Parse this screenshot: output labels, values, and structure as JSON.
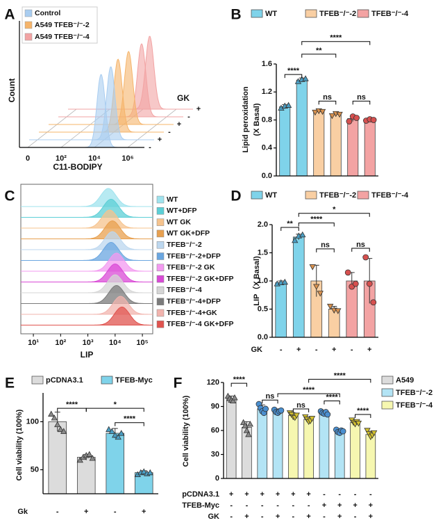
{
  "chart_data": [
    {
      "type": "waterfall",
      "panel": "A",
      "ylabel": "Count",
      "xlabel": "C11-BODIPY",
      "xlim": [
        -0.5,
        7
      ],
      "xticks": [
        0,
        {
          "value": 2,
          "label": "10²"
        },
        {
          "value": 4,
          "label": "10⁴"
        },
        {
          "value": 6,
          "label": "10⁶"
        }
      ],
      "zlabel": "GK",
      "zticks": [
        "+",
        "-",
        "+",
        "-",
        "+",
        "-"
      ],
      "series": [
        {
          "name": "Control",
          "color": "#a9cdf0",
          "peaks": [
            4.4,
            4.4
          ]
        },
        {
          "name": "A549 TFEB⁻/⁻-2",
          "color": "#f5b46a",
          "peaks": [
            4.3,
            4.25
          ]
        },
        {
          "name": "A549 TFEB⁻/⁻-4",
          "color": "#f2a3a3",
          "peaks": [
            4.4,
            4.5
          ]
        }
      ]
    },
    {
      "type": "bar",
      "panel": "B",
      "ylabel": "Lipid peroxidation",
      "ylabel2": "(X Basal)",
      "ylim": [
        0,
        1.6
      ],
      "yticks": [
        {
          "value": 0,
          "label": "0.0"
        },
        0.4,
        0.8,
        1.2,
        1.6
      ],
      "series": [
        {
          "name": "WT",
          "color": "#7fd3ea",
          "point_color": "#4a9ec4",
          "marker": "triangle-up",
          "values": [
            0.99,
            1.37,
            null,
            null,
            null,
            null
          ],
          "errors": [
            0.03,
            0.03,
            null,
            null,
            null,
            null
          ],
          "points": [
            [
              0.97,
              1.0,
              1.01
            ],
            [
              1.35,
              1.38,
              1.39
            ],
            null,
            null,
            null,
            null
          ]
        },
        {
          "name": "TFEB⁻/⁻-2",
          "color": "#f9cfa3",
          "point_color": "#d9914e",
          "marker": "triangle-down",
          "values": [
            null,
            null,
            0.92,
            0.88,
            null,
            null
          ],
          "errors": [
            null,
            null,
            0.02,
            0.03,
            null,
            null
          ],
          "points": [
            null,
            null,
            [
              0.91,
              0.93,
              0.92
            ],
            [
              0.86,
              0.89,
              0.88
            ],
            null,
            null
          ]
        },
        {
          "name": "TFEB⁻/⁻-4",
          "color": "#f3a3a3",
          "point_color": "#d6504f",
          "marker": "circle",
          "values": [
            null,
            null,
            null,
            null,
            0.82,
            0.8
          ],
          "errors": [
            null,
            null,
            null,
            null,
            0.04,
            0.02
          ],
          "points": [
            null,
            null,
            null,
            null,
            [
              0.78,
              0.85,
              0.83
            ],
            [
              0.79,
              0.81,
              0.8
            ]
          ]
        }
      ],
      "annotations": [
        "****",
        "**",
        "****",
        "ns",
        "ns"
      ]
    },
    {
      "type": "ridgeline",
      "panel": "C",
      "xlabel": "LIP",
      "xlim": [
        0.54,
        5.38
      ],
      "xticks": [
        {
          "value": 1,
          "label": "10¹"
        },
        {
          "value": 2,
          "label": "10²"
        },
        {
          "value": 3,
          "label": "10³"
        },
        {
          "value": 4,
          "label": "10⁴"
        },
        {
          "value": 5,
          "label": "10⁵"
        }
      ],
      "series": [
        {
          "name": "WT",
          "color": "#9fe3ee",
          "peak": 3.75
        },
        {
          "name": "WT+DFP",
          "color": "#5ccfd6",
          "peak": 3.85
        },
        {
          "name": "WT GK",
          "color": "#f6c38d",
          "peak": 3.8
        },
        {
          "name": "WT GK+DFP",
          "color": "#e8a04f",
          "peak": 3.9
        },
        {
          "name": "TFEB⁻/⁻-2",
          "color": "#bcd7ef",
          "peak": 3.9
        },
        {
          "name": "TFEB⁻/⁻-2+DFP",
          "color": "#6aa6e0",
          "peak": 3.85
        },
        {
          "name": "TFEB⁻/⁻-2 GK",
          "color": "#f39af0",
          "peak": 4.05
        },
        {
          "name": "TFEB⁻/⁻-2 GK+DFP",
          "color": "#d94ad6",
          "peak": 4.0
        },
        {
          "name": "TFEB⁻/⁻-4",
          "color": "#d5d5d5",
          "peak": 4.0
        },
        {
          "name": "TFEB⁻/⁻-4+DFP",
          "color": "#7b7b7b",
          "peak": 4.05
        },
        {
          "name": "TFEB⁻/⁻-4+GK",
          "color": "#f2b4ae",
          "peak": 4.2
        },
        {
          "name": "TFEB⁻/⁻-4 GK+DFP",
          "color": "#e0544f",
          "peak": 4.25
        }
      ]
    },
    {
      "type": "bar",
      "panel": "D",
      "ylabel": "LIP（X Basal)",
      "ylim": [
        0,
        2
      ],
      "yticks": [
        {
          "value": 0,
          "label": "0.0"
        },
        0.5,
        {
          "value": 1,
          "label": "1.0"
        },
        1.5,
        {
          "value": 2,
          "label": "2.0"
        }
      ],
      "series": [
        {
          "name": "WT",
          "color": "#7fd3ea",
          "point_color": "#4a9ec4",
          "marker": "triangle-up",
          "values": [
            0.97,
            1.78,
            null,
            null,
            null,
            null
          ],
          "errors": [
            0.03,
            0.05,
            null,
            null,
            null,
            null
          ],
          "points": [
            [
              0.95,
              0.97,
              0.98
            ],
            [
              1.72,
              1.8,
              1.82
            ],
            null,
            null,
            null,
            null
          ]
        },
        {
          "name": "TFEB⁻/⁻-2",
          "color": "#f9cfa3",
          "point_color": "#d9914e",
          "marker": "triangle-down",
          "values": [
            null,
            null,
            1.0,
            0.5,
            null,
            null
          ],
          "errors": [
            null,
            null,
            0.28,
            0.05,
            null,
            null
          ],
          "points": [
            null,
            null,
            [
              1.25,
              0.9,
              0.78
            ],
            [
              0.55,
              0.48,
              0.47
            ],
            null,
            null
          ]
        },
        {
          "name": "TFEB⁻/⁻-4",
          "color": "#f3a3a3",
          "point_color": "#d6504f",
          "marker": "circle",
          "values": [
            null,
            null,
            null,
            null,
            1.0,
            1.0
          ],
          "errors": [
            null,
            null,
            null,
            null,
            0.15,
            0.4
          ],
          "points": [
            null,
            null,
            null,
            null,
            [
              1.15,
              0.9,
              0.95
            ],
            [
              1.42,
              0.95,
              0.62
            ]
          ]
        }
      ],
      "rows": [
        {
          "label": "GK",
          "marks": [
            "-",
            "+",
            "-",
            "+",
            "-",
            "+"
          ]
        }
      ],
      "annotations": [
        "**",
        "****",
        "*",
        "ns",
        "ns"
      ]
    },
    {
      "type": "bar",
      "panel": "E",
      "ylabel": "Cell viability (100%)",
      "ylim": [
        25,
        130
      ],
      "yticks": [
        50,
        100
      ],
      "series": [
        {
          "name": "pCDNA3.1",
          "color": "#dcdcdc",
          "point_color": "#8a8a8a",
          "marker": "triangle-up",
          "values": [
            100,
            63,
            null,
            null
          ],
          "errors": [
            10,
            3,
            null,
            null
          ],
          "points": [
            [
              108,
              104,
              97,
              92,
              90
            ],
            [
              60,
              63,
              65,
              66,
              62
            ],
            null,
            null
          ]
        },
        {
          "name": "TFEB-Myc",
          "color": "#7fd3ea",
          "point_color": "#4a9ec4",
          "marker": "triangle-up",
          "values": [
            null,
            null,
            88,
            47
          ],
          "errors": [
            null,
            null,
            5,
            2
          ],
          "points": [
            null,
            null,
            [
              92,
              90,
              86,
              84,
              88
            ],
            [
              45,
              47,
              48,
              46,
              47
            ]
          ]
        }
      ],
      "rows": [
        {
          "label": "Gk",
          "marks": [
            "-",
            "+",
            "-",
            "+"
          ]
        }
      ],
      "annotations": [
        "****",
        "*",
        "****"
      ]
    },
    {
      "type": "bar",
      "panel": "F",
      "ylabel": "Cell viability (100%)",
      "ylim": [
        0,
        120
      ],
      "yticks": [
        0,
        30,
        60,
        90,
        120
      ],
      "series": [
        {
          "name": "A549",
          "color": "#dcdcdc",
          "point_color": "#8a8a8a",
          "marker": "triangle-up",
          "values": [
            100,
            64,
            null,
            null,
            null,
            null,
            null,
            null,
            null,
            null
          ],
          "errors": [
            3,
            7,
            null,
            null,
            null,
            null,
            null,
            null,
            null,
            null
          ],
          "points": [
            [
              103,
              100,
              98,
              97,
              101
            ],
            [
              70,
              66,
              60,
              55,
              68
            ],
            null,
            null,
            null,
            null,
            null,
            null,
            null,
            null
          ]
        },
        {
          "name": "TFEB⁻/⁻-2",
          "color": "#b3e4f5",
          "point_color": "#4a8fd0",
          "marker": "circle",
          "values": [
            null,
            null,
            87,
            84,
            null,
            null,
            82,
            59,
            null,
            null
          ],
          "errors": [
            null,
            null,
            5,
            3,
            null,
            null,
            2,
            2,
            null,
            null
          ],
          "points": [
            null,
            null,
            [
              93,
              88,
              84,
              82,
              87
            ],
            [
              86,
              83,
              82,
              84,
              85
            ],
            null,
            null,
            [
              84,
              82,
              81,
              83,
              80
            ],
            [
              61,
              58,
              57,
              60,
              59
            ],
            null,
            null
          ]
        },
        {
          "name": "TFEB⁻/⁻-4",
          "color": "#f6f7b0",
          "point_color": "#d4c230",
          "marker": "triangle-down",
          "values": [
            null,
            null,
            null,
            null,
            79,
            74,
            null,
            null,
            70,
            55
          ],
          "errors": [
            null,
            null,
            null,
            null,
            3,
            3,
            null,
            null,
            3,
            4
          ],
          "points": [
            null,
            null,
            null,
            null,
            [
              82,
              80,
              77,
              76,
              79
            ],
            [
              77,
              74,
              71,
              72,
              75
            ],
            null,
            null,
            [
              73,
              70,
              68,
              71,
              69
            ],
            [
              60,
              56,
              52,
              54,
              57
            ]
          ]
        }
      ],
      "rows": [
        {
          "label": "pCDNA3.1",
          "marks": [
            "+",
            "+",
            "+",
            "+",
            "+",
            "+",
            "-",
            "-",
            "-",
            "-"
          ]
        },
        {
          "label": "TFEB-Myc",
          "marks": [
            "-",
            "-",
            "-",
            "-",
            "-",
            "-",
            "+",
            "+",
            "+",
            "+"
          ]
        },
        {
          "label": "GK",
          "marks": [
            "-",
            "+",
            "-",
            "+",
            "-",
            "+",
            "-",
            "+",
            "-",
            "+"
          ]
        }
      ],
      "annotations": [
        "****",
        "ns",
        "ns",
        "****",
        "****",
        "****",
        "****"
      ]
    }
  ]
}
